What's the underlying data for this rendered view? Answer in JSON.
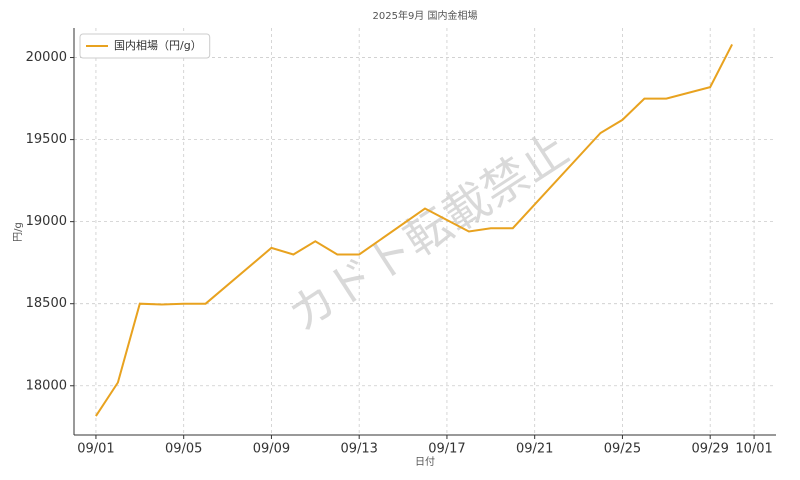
{
  "chart_data": {
    "type": "line",
    "title": "2025年9月 国内金相場",
    "x_label": "日付",
    "y_label": "円/g",
    "watermark": "カドト転載禁止",
    "x": [
      "09/01",
      "09/02",
      "09/03",
      "09/04",
      "09/05",
      "09/06",
      "09/09",
      "09/10",
      "09/11",
      "09/12",
      "09/13",
      "09/16",
      "09/17",
      "09/18",
      "09/19",
      "09/20",
      "09/24",
      "09/25",
      "09/26",
      "09/27",
      "09/29",
      "09/30"
    ],
    "series": [
      {
        "name": "国内相場（円/g）",
        "color": "#e8a21f",
        "values": [
          17815,
          18020,
          18500,
          18495,
          18500,
          18500,
          18840,
          18800,
          18880,
          18800,
          18800,
          19080,
          19010,
          18940,
          18960,
          18960,
          19540,
          19620,
          19750,
          19750,
          19820,
          20080
        ]
      }
    ],
    "xlim": [
      "08/31",
      "10/02"
    ],
    "xticks": [
      "09/01",
      "09/05",
      "09/09",
      "09/13",
      "09/17",
      "09/21",
      "09/25",
      "09/29",
      "10/01"
    ],
    "ylim": [
      17700,
      20180
    ],
    "yticks": [
      18000,
      18500,
      19000,
      19500,
      20000
    ],
    "grid": true,
    "legend": "upper-left"
  }
}
